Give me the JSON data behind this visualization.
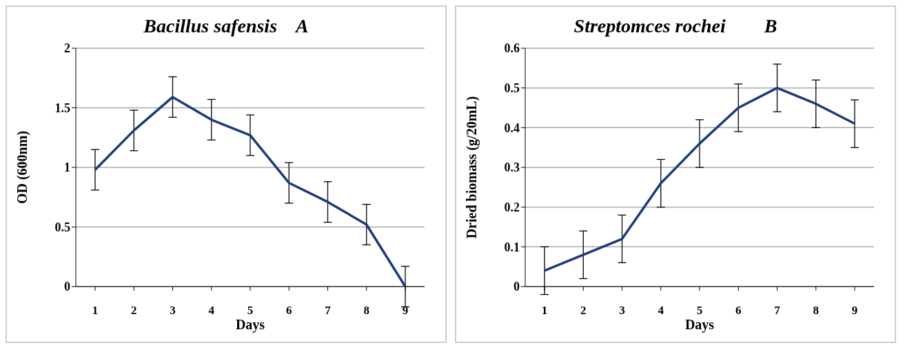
{
  "chart_data": [
    {
      "type": "line",
      "title": "Bacillus safensis    A",
      "xlabel": "Days",
      "ylabel": "OD  (600nm)",
      "categories": [
        "1",
        "2",
        "3",
        "4",
        "5",
        "6",
        "7",
        "8",
        "9"
      ],
      "series": [
        {
          "color": "#1b3a78",
          "values": [
            0.98,
            1.31,
            1.59,
            1.4,
            1.27,
            0.87,
            0.71,
            0.52,
            0.0
          ],
          "errors": [
            0.17,
            0.17,
            0.17,
            0.17,
            0.17,
            0.17,
            0.17,
            0.17,
            0.17
          ]
        }
      ],
      "ylim": [
        0,
        2
      ],
      "yticks": [
        0,
        0.5,
        1,
        1.5,
        2
      ],
      "grid": "y",
      "legend": false,
      "marker": "none",
      "line_style": "solid"
    },
    {
      "type": "line",
      "title": "Streptomces rochei        B",
      "xlabel": "Days",
      "ylabel": "Dried biomass (g/20mL)",
      "categories": [
        "1",
        "2",
        "3",
        "4",
        "5",
        "6",
        "7",
        "8",
        "9"
      ],
      "series": [
        {
          "color": "#1b3a78",
          "values": [
            0.04,
            0.08,
            0.12,
            0.26,
            0.36,
            0.45,
            0.5,
            0.46,
            0.41
          ],
          "errors": [
            0.06,
            0.06,
            0.06,
            0.06,
            0.06,
            0.06,
            0.06,
            0.06,
            0.06
          ]
        }
      ],
      "ylim": [
        0,
        0.6
      ],
      "yticks": [
        0,
        0.1,
        0.2,
        0.3,
        0.4,
        0.5,
        0.6
      ],
      "grid": "y",
      "legend": false,
      "marker": "none",
      "line_style": "solid"
    }
  ]
}
